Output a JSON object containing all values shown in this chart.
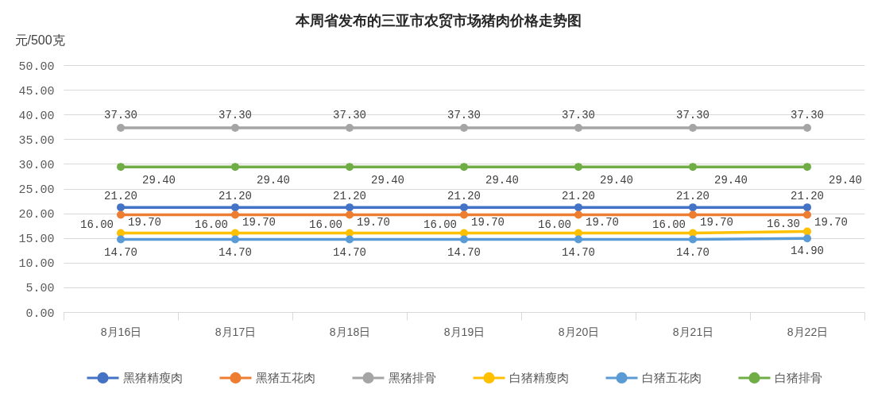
{
  "chart_data": {
    "type": "line",
    "title": "本周省发布的三亚市农贸市场猪肉价格走势图",
    "ylabel": "元/500克",
    "categories": [
      "8月16日",
      "8月17日",
      "8月18日",
      "8月19日",
      "8月20日",
      "8月21日",
      "8月22日"
    ],
    "series": [
      {
        "name": "黑猪精瘦肉",
        "color": "#4472c4",
        "values": [
          21.2,
          21.2,
          21.2,
          21.2,
          21.2,
          21.2,
          21.2
        ],
        "value_labels": [
          "21.20",
          "21.20",
          "21.20",
          "21.20",
          "21.20",
          "21.20",
          "21.20"
        ]
      },
      {
        "name": "黑猪五花肉",
        "color": "#ed7d31",
        "values": [
          19.7,
          19.7,
          19.7,
          19.7,
          19.7,
          19.7,
          19.7
        ],
        "value_labels": [
          "19.70",
          "19.70",
          "19.70",
          "19.70",
          "19.70",
          "19.70",
          "19.70"
        ]
      },
      {
        "name": "黑猪排骨",
        "color": "#a5a5a5",
        "values": [
          37.3,
          37.3,
          37.3,
          37.3,
          37.3,
          37.3,
          37.3
        ],
        "value_labels": [
          "37.30",
          "37.30",
          "37.30",
          "37.30",
          "37.30",
          "37.30",
          "37.30"
        ]
      },
      {
        "name": "白猪精瘦肉",
        "color": "#ffc000",
        "values": [
          16.0,
          16.0,
          16.0,
          16.0,
          16.0,
          16.0,
          16.3
        ],
        "value_labels": [
          "16.00",
          "16.00",
          "16.00",
          "16.00",
          "16.00",
          "16.00",
          "16.30"
        ]
      },
      {
        "name": "白猪五花肉",
        "color": "#5b9bd5",
        "values": [
          14.7,
          14.7,
          14.7,
          14.7,
          14.7,
          14.7,
          14.9
        ],
        "value_labels": [
          "14.70",
          "14.70",
          "14.70",
          "14.70",
          "14.70",
          "14.70",
          "14.90"
        ]
      },
      {
        "name": "白猪排骨",
        "color": "#70ad47",
        "values": [
          29.4,
          29.4,
          29.4,
          29.4,
          29.4,
          29.4,
          29.4
        ],
        "value_labels": [
          "29.40",
          "29.40",
          "29.40",
          "29.40",
          "29.40",
          "29.40",
          "29.40"
        ]
      }
    ],
    "ylim": [
      0,
      50
    ],
    "yticks": [
      {
        "value": 0,
        "label": "0.00"
      },
      {
        "value": 5,
        "label": "5.00"
      },
      {
        "value": 10,
        "label": "10.00"
      },
      {
        "value": 15,
        "label": "15.00"
      },
      {
        "value": 20,
        "label": "20.00"
      },
      {
        "value": 25,
        "label": "25.00"
      },
      {
        "value": 30,
        "label": "30.00"
      },
      {
        "value": 35,
        "label": "35.00"
      },
      {
        "value": 40,
        "label": "40.00"
      },
      {
        "value": 45,
        "label": "45.00"
      },
      {
        "value": 50,
        "label": "50.00"
      }
    ],
    "grid": "y",
    "legend": "bottom",
    "marker": "circle"
  }
}
